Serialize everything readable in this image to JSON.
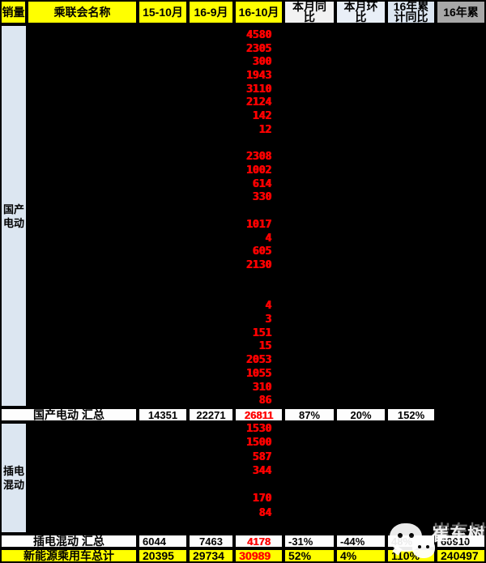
{
  "colors": {
    "yellow": "#ffff00",
    "light_blue": "#dce6f1",
    "near_white": "#f2f2f2",
    "pale_blue": "#e9eff7",
    "gray": "#a8a8a8",
    "red": "#ff0000"
  },
  "header": {
    "cells": [
      {
        "label": "销量",
        "bg": "#ffff00"
      },
      {
        "label": "乘联会名称",
        "bg": "#ffff00"
      },
      {
        "label": "15-10月",
        "bg": "#ffff00"
      },
      {
        "label": "16-9月",
        "bg": "#ffff00"
      },
      {
        "label": "16-10月",
        "bg": "#ffff00"
      },
      {
        "label": "本月同比",
        "bg": "#f2f2f2"
      },
      {
        "label": "本月环比",
        "bg": "#e9eff7"
      },
      {
        "label": "16年累计同比",
        "bg": "#dce6f1"
      },
      {
        "label": "16年累",
        "bg": "#a8a8a8"
      }
    ]
  },
  "bev": {
    "sidebar_label": "国产电动",
    "month_values": [
      "4580",
      "2305",
      "300",
      "1943",
      "3110",
      "2124",
      "142",
      "12",
      "",
      "2308",
      "1002",
      "614",
      "330",
      "",
      "1017",
      "4",
      "605",
      "2130",
      "",
      "",
      "4",
      "3",
      "151",
      "15",
      "2053",
      "1055",
      "310",
      "86"
    ]
  },
  "phev": {
    "sidebar_label": "插电混动",
    "month_values": [
      "1530",
      "1500",
      "587",
      "344",
      "",
      "170",
      "84",
      ""
    ]
  },
  "summary_bev": {
    "label": "国产电动 汇总",
    "cells": [
      "14351",
      "22271",
      "26811",
      "87%",
      "20%",
      "152%",
      ""
    ]
  },
  "summary_phev": {
    "label": "插电混动 汇总",
    "cells": [
      "6044",
      "7463",
      "4178",
      "-31%",
      "-44%",
      "48%",
      "60910"
    ]
  },
  "total_row": {
    "label": "新能源乘用车总计",
    "cells": [
      "20395",
      "29734",
      "30989",
      "52%",
      "4%",
      "110%",
      "240497"
    ]
  },
  "watermark": {
    "name": "崔东树",
    "icon": "wechat-chat-bubbles-icon"
  }
}
